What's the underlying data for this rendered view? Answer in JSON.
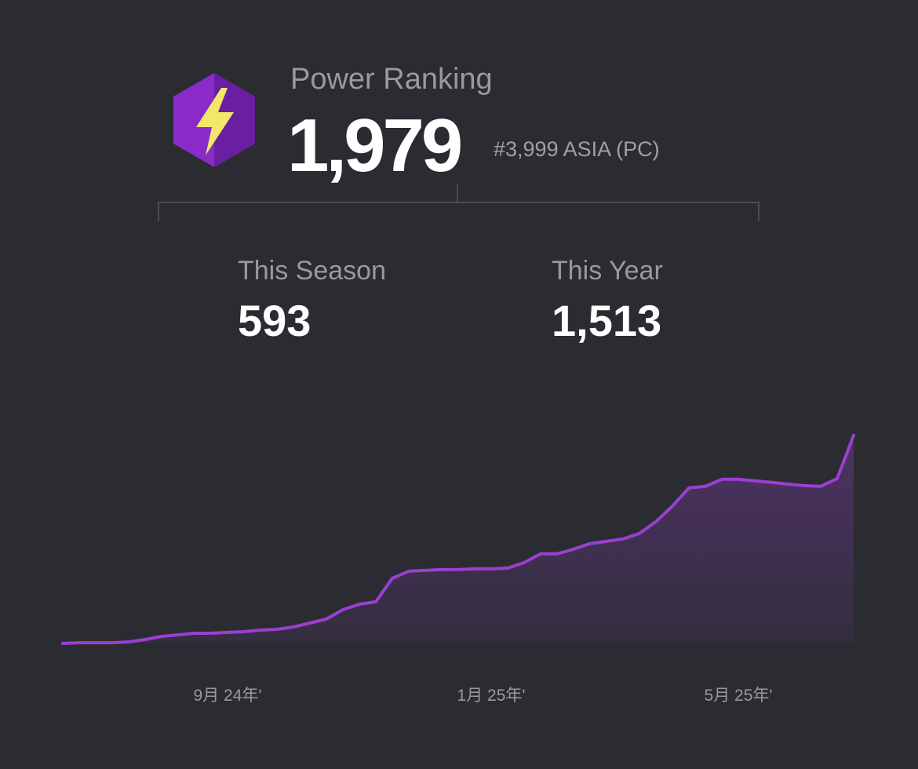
{
  "header": {
    "title": "Power Ranking",
    "score": "1,979",
    "rank": "#3,999 ASIA (PC)"
  },
  "stats": [
    {
      "label": "This Season",
      "value": "593"
    },
    {
      "label": "This Year",
      "value": "1,513"
    }
  ],
  "chart_data": {
    "type": "line",
    "color": "#9b3fd1",
    "categories": [
      null,
      null,
      null,
      null,
      null,
      null,
      null,
      null,
      null,
      null,
      "9月 24年'",
      null,
      null,
      null,
      null,
      null,
      null,
      null,
      null,
      null,
      null,
      null,
      null,
      null,
      null,
      null,
      "1月 25年'",
      null,
      null,
      null,
      null,
      null,
      null,
      null,
      null,
      null,
      null,
      null,
      null,
      null,
      null,
      "5月 25年'",
      null,
      null,
      null,
      null,
      null,
      null,
      null
    ],
    "values": [
      0,
      7,
      7,
      7,
      15,
      37,
      67,
      82,
      97,
      97,
      105,
      112,
      127,
      134,
      157,
      194,
      232,
      321,
      373,
      396,
      620,
      687,
      695,
      702,
      702,
      710,
      710,
      717,
      769,
      852,
      852,
      896,
      949,
      971,
      994,
      1046,
      1158,
      1307,
      1479,
      1494,
      1561,
      1561,
      1546,
      1531,
      1516,
      1501,
      1494,
      1569,
      1979
    ],
    "ylim": [
      0,
      2000
    ]
  }
}
